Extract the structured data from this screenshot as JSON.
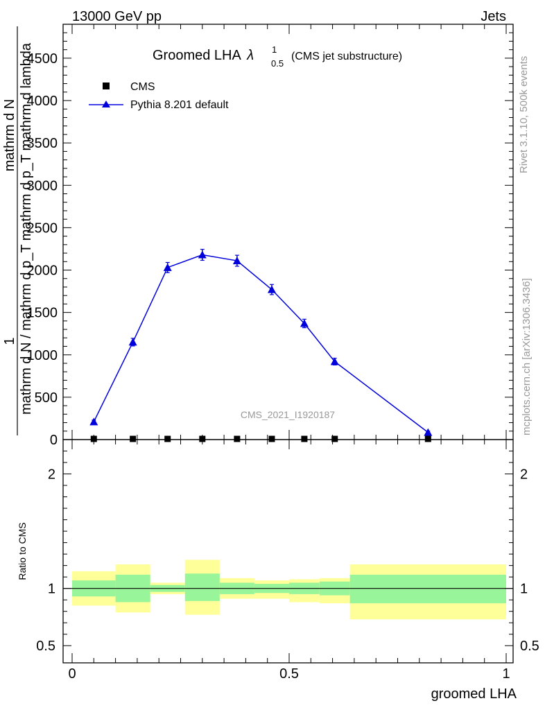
{
  "header": {
    "left": "13000 GeV pp",
    "right": "Jets"
  },
  "side_text": {
    "rivet": "Rivet 3.1.10,  500k events",
    "mcplots": "mcplots.cern.ch [arXiv:1306.3436]"
  },
  "chart_data": {
    "type": "line",
    "title": "Groomed LHA",
    "title_symbol": "λ",
    "title_sup": "1",
    "title_sub": "0.5",
    "title_suffix": "(CMS jet substructure)",
    "ylabel_numerator": "mathrm d N",
    "ylabel_numerator_prefix": "1",
    "ylabel_denominator": "mathrm d N / mathrm d p_T mathrm d p_T mathrm d lambda",
    "xlabel": "groomed LHA",
    "watermark": "CMS_2021_I1920187",
    "xlim": [
      0,
      1
    ],
    "ylim": [
      0,
      4900
    ],
    "main_yticks": [
      0,
      500,
      1000,
      1500,
      2000,
      2500,
      3000,
      3500,
      4000,
      4500
    ],
    "main_ytick_labels": [
      "0",
      "500",
      "1000",
      "1500",
      "2000",
      "2500",
      "3000",
      "3500",
      "4000",
      "4500"
    ],
    "xticks": [
      0,
      0.5,
      1
    ],
    "xtick_labels": [
      "0",
      "0.5",
      "1"
    ],
    "legend_position": "top-left",
    "series": [
      {
        "name": "CMS",
        "marker": "square",
        "color": "#000000",
        "x": [
          0.05,
          0.14,
          0.22,
          0.3,
          0.38,
          0.46,
          0.535,
          0.605,
          0.82
        ],
        "y": [
          2,
          2,
          2,
          2,
          2,
          2,
          2,
          2,
          2
        ]
      },
      {
        "name": "Pythia 8.201 default",
        "marker": "triangle",
        "color": "#0000dd",
        "x": [
          0.05,
          0.14,
          0.22,
          0.3,
          0.38,
          0.46,
          0.535,
          0.605,
          0.82
        ],
        "y": [
          210,
          1150,
          2030,
          2180,
          2110,
          1770,
          1370,
          920,
          85
        ],
        "yerr": [
          20,
          45,
          60,
          65,
          65,
          60,
          50,
          40,
          15
        ]
      }
    ],
    "ratio": {
      "ylabel": "Ratio to CMS",
      "ylim": [
        0.35,
        2.3
      ],
      "yticks": [
        0.5,
        1,
        2
      ],
      "ytick_labels": [
        "0.5",
        "1",
        "2"
      ],
      "bands": [
        {
          "x0": 0.0,
          "x1": 0.1,
          "in_lo": 0.93,
          "in_hi": 1.07,
          "out_lo": 0.85,
          "out_hi": 1.15
        },
        {
          "x0": 0.1,
          "x1": 0.18,
          "in_lo": 0.88,
          "in_hi": 1.12,
          "out_lo": 0.79,
          "out_hi": 1.21
        },
        {
          "x0": 0.18,
          "x1": 0.26,
          "in_lo": 0.97,
          "in_hi": 1.03,
          "out_lo": 0.95,
          "out_hi": 1.05
        },
        {
          "x0": 0.26,
          "x1": 0.34,
          "in_lo": 0.89,
          "in_hi": 1.13,
          "out_lo": 0.77,
          "out_hi": 1.25
        },
        {
          "x0": 0.34,
          "x1": 0.42,
          "in_lo": 0.95,
          "in_hi": 1.05,
          "out_lo": 0.91,
          "out_hi": 1.09
        },
        {
          "x0": 0.42,
          "x1": 0.5,
          "in_lo": 0.96,
          "in_hi": 1.04,
          "out_lo": 0.91,
          "out_hi": 1.07
        },
        {
          "x0": 0.5,
          "x1": 0.57,
          "in_lo": 0.95,
          "in_hi": 1.05,
          "out_lo": 0.88,
          "out_hi": 1.08
        },
        {
          "x0": 0.57,
          "x1": 0.64,
          "in_lo": 0.94,
          "in_hi": 1.06,
          "out_lo": 0.87,
          "out_hi": 1.09
        },
        {
          "x0": 0.64,
          "x1": 1.0,
          "in_lo": 0.87,
          "in_hi": 1.12,
          "out_lo": 0.73,
          "out_hi": 1.21
        }
      ]
    }
  },
  "colors": {
    "band_inner": "#99f599",
    "band_outer": "#ffff99",
    "mc_line": "#0000dd",
    "data": "#000000",
    "watermark": "#999999"
  }
}
